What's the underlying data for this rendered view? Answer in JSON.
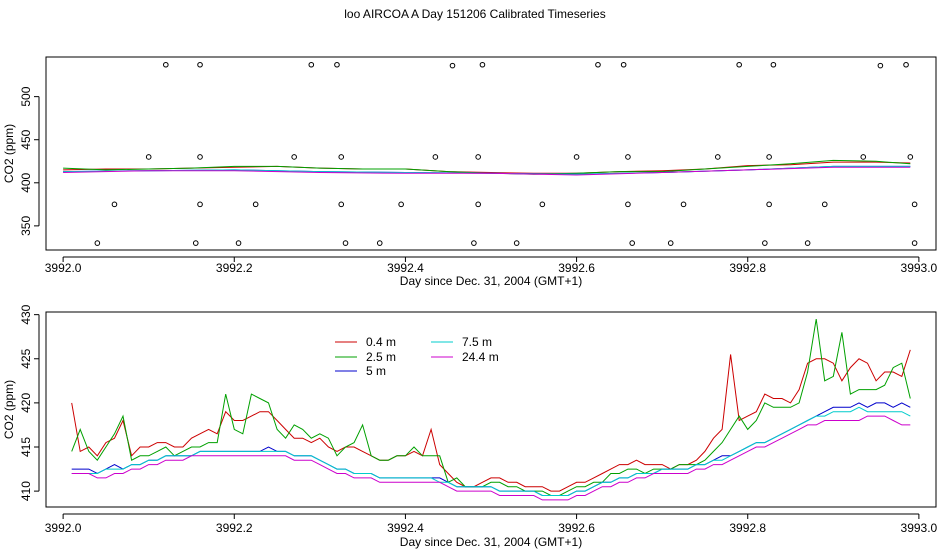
{
  "title": "loo AIRCOA A  Day 151206  Calibrated Timeseries",
  "chart_data": [
    {
      "type": "line",
      "xlabel": "Day since Dec. 31, 2004 (GMT+1)",
      "ylabel": "CO2 (ppm)",
      "xlim": [
        3991.98,
        3993.02
      ],
      "ylim": [
        322,
        546
      ],
      "xticks": [
        "3992.0",
        "3992.2",
        "3992.4",
        "3992.6",
        "3992.8",
        "3993.0"
      ],
      "yticks": [
        "350",
        "400",
        "450",
        "500"
      ],
      "series_colors": [
        "#cc0000",
        "#00a000",
        "#0000cc",
        "#00cccc",
        "#cc00cc"
      ],
      "series": [
        {
          "x": [
            3992.0,
            3992.05,
            3992.1,
            3992.15,
            3992.2,
            3992.25,
            3992.3,
            3992.35,
            3992.4,
            3992.45,
            3992.5,
            3992.55,
            3992.6,
            3992.65,
            3992.7,
            3992.75,
            3992.8,
            3992.85,
            3992.9,
            3992.95,
            3992.99
          ],
          "values": [
            415,
            416,
            416,
            417,
            418,
            419,
            417,
            416,
            416,
            413,
            412,
            411,
            411,
            413,
            414,
            416,
            420,
            421,
            424,
            424,
            423
          ]
        },
        {
          "x": [
            3992.0,
            3992.05,
            3992.1,
            3992.15,
            3992.2,
            3992.25,
            3992.3,
            3992.35,
            3992.4,
            3992.45,
            3992.5,
            3992.55,
            3992.6,
            3992.65,
            3992.7,
            3992.75,
            3992.8,
            3992.85,
            3992.9,
            3992.95,
            3992.99
          ],
          "values": [
            417,
            415,
            416,
            417,
            419,
            419,
            417,
            416,
            416,
            413,
            411,
            410,
            411,
            413,
            413,
            416,
            419,
            422,
            426,
            425,
            422
          ]
        },
        {
          "x": [
            3992.0,
            3992.1,
            3992.2,
            3992.3,
            3992.4,
            3992.5,
            3992.6,
            3992.7,
            3992.8,
            3992.9,
            3992.99
          ],
          "values": [
            413,
            414,
            415,
            413,
            412,
            411,
            410,
            412,
            415,
            419,
            419
          ]
        },
        {
          "x": [
            3992.0,
            3992.1,
            3992.2,
            3992.3,
            3992.4,
            3992.5,
            3992.6,
            3992.7,
            3992.8,
            3992.9,
            3992.99
          ],
          "values": [
            413,
            414,
            415,
            413,
            412,
            411,
            410,
            412,
            415,
            419,
            419
          ]
        },
        {
          "x": [
            3992.0,
            3992.1,
            3992.2,
            3992.3,
            3992.4,
            3992.5,
            3992.6,
            3992.7,
            3992.8,
            3992.9,
            3992.99
          ],
          "values": [
            412,
            414,
            414,
            412,
            411,
            411,
            409,
            412,
            415,
            418,
            418
          ]
        }
      ],
      "points": {
        "x": [
          3992.04,
          3992.06,
          3992.1,
          3992.12,
          3992.155,
          3992.16,
          3992.16,
          3992.16,
          3992.205,
          3992.225,
          3992.27,
          3992.29,
          3992.32,
          3992.325,
          3992.325,
          3992.33,
          3992.37,
          3992.395,
          3992.435,
          3992.455,
          3992.48,
          3992.485,
          3992.485,
          3992.49,
          3992.53,
          3992.56,
          3992.6,
          3992.625,
          3992.655,
          3992.66,
          3992.66,
          3992.665,
          3992.71,
          3992.725,
          3992.765,
          3992.79,
          3992.82,
          3992.825,
          3992.825,
          3992.83,
          3992.87,
          3992.89,
          3992.935,
          3992.955,
          3992.985,
          3992.99,
          3992.995,
          3992.995
        ],
        "y": [
          330,
          375,
          430,
          537,
          330,
          375,
          430,
          537,
          330,
          375,
          430,
          537,
          537,
          430,
          375,
          330,
          330,
          375,
          430,
          536,
          330,
          375,
          430,
          537,
          330,
          375,
          430,
          537,
          537,
          430,
          375,
          330,
          330,
          375,
          430,
          537,
          330,
          375,
          430,
          537,
          330,
          375,
          430,
          536,
          537,
          430,
          375,
          330
        ]
      }
    },
    {
      "type": "line",
      "xlabel": "Day since Dec. 31, 2004 (GMT+1)",
      "ylabel": "CO2 (ppm)",
      "xlim": [
        3991.98,
        3993.02
      ],
      "ylim": [
        408.2,
        430.3
      ],
      "xticks": [
        "3992.0",
        "3992.2",
        "3992.4",
        "3992.6",
        "3992.8",
        "3993.0"
      ],
      "yticks": [
        "410",
        "415",
        "420",
        "425",
        "430"
      ],
      "legend": "top-left",
      "x": [
        3992.01,
        3992.02,
        3992.03,
        3992.04,
        3992.05,
        3992.06,
        3992.07,
        3992.08,
        3992.09,
        3992.1,
        3992.11,
        3992.12,
        3992.13,
        3992.14,
        3992.15,
        3992.16,
        3992.17,
        3992.18,
        3992.19,
        3992.2,
        3992.21,
        3992.22,
        3992.23,
        3992.24,
        3992.25,
        3992.26,
        3992.27,
        3992.28,
        3992.29,
        3992.3,
        3992.31,
        3992.32,
        3992.33,
        3992.34,
        3992.35,
        3992.36,
        3992.37,
        3992.38,
        3992.39,
        3992.4,
        3992.41,
        3992.42,
        3992.43,
        3992.44,
        3992.45,
        3992.46,
        3992.47,
        3992.48,
        3992.49,
        3992.5,
        3992.51,
        3992.52,
        3992.53,
        3992.54,
        3992.55,
        3992.56,
        3992.57,
        3992.58,
        3992.59,
        3992.6,
        3992.61,
        3992.62,
        3992.63,
        3992.64,
        3992.65,
        3992.66,
        3992.67,
        3992.68,
        3992.69,
        3992.7,
        3992.71,
        3992.72,
        3992.73,
        3992.74,
        3992.75,
        3992.76,
        3992.77,
        3992.78,
        3992.79,
        3992.8,
        3992.81,
        3992.82,
        3992.83,
        3992.84,
        3992.85,
        3992.86,
        3992.87,
        3992.88,
        3992.89,
        3992.9,
        3992.91,
        3992.92,
        3992.93,
        3992.94,
        3992.95,
        3992.96,
        3992.97,
        3992.98,
        3992.99
      ],
      "series": [
        {
          "name": "0.4 m",
          "color": "#cc0000",
          "values": [
            420,
            414.5,
            415,
            414,
            415.5,
            416,
            418,
            414,
            415,
            415,
            415.5,
            415.5,
            415,
            415,
            416,
            416.5,
            417,
            416.5,
            419,
            418,
            418,
            418.5,
            419,
            419,
            418,
            417,
            416,
            416,
            415.5,
            416,
            415,
            414.5,
            415,
            415,
            414.5,
            414,
            413.5,
            413.5,
            414,
            414,
            414.5,
            414,
            417,
            413,
            412,
            411,
            410.5,
            410.5,
            411,
            411.5,
            411.5,
            411,
            411,
            410.5,
            410.5,
            410.5,
            410,
            410,
            410.5,
            411,
            411,
            411.5,
            412,
            412.5,
            413,
            413,
            413.5,
            413,
            413,
            413,
            412.5,
            413,
            413,
            413.5,
            414.5,
            416,
            417,
            425.5,
            418,
            418.5,
            419,
            421,
            420.5,
            420.5,
            420,
            421.5,
            424.5,
            425,
            425,
            424.5,
            422.5,
            424,
            425,
            424.5,
            422.5,
            423.5,
            423.5,
            423,
            426
          ]
        },
        {
          "name": "2.5 m",
          "color": "#00a000",
          "values": [
            414.5,
            417,
            414.5,
            413.5,
            415,
            416.5,
            418.5,
            413.5,
            414,
            414,
            414.5,
            415,
            414,
            414.5,
            415,
            415,
            415.5,
            415.5,
            421,
            417,
            416.5,
            421,
            420.5,
            420,
            417,
            416,
            417.5,
            417,
            416,
            416.5,
            416,
            414,
            415,
            415.5,
            417.5,
            414,
            413.5,
            413.5,
            414,
            414,
            415,
            414,
            414,
            414,
            411,
            411.5,
            410.5,
            410.5,
            410.5,
            411,
            411,
            410.5,
            410.5,
            410,
            410,
            410,
            409.5,
            409.5,
            410,
            410.5,
            410.5,
            411,
            411,
            412,
            412,
            412.5,
            412.5,
            412,
            412.5,
            412.5,
            412.5,
            413,
            413,
            413,
            413.5,
            414.5,
            415.5,
            417,
            418.5,
            417,
            418,
            420,
            419.5,
            419.5,
            419.5,
            420,
            423.5,
            429.5,
            422.5,
            423,
            428,
            421,
            421.5,
            421.5,
            421.5,
            422,
            424,
            424.5,
            420.5
          ]
        },
        {
          "name": "5 m",
          "color": "#0000cc",
          "values": [
            412.5,
            412.5,
            412.5,
            412,
            412.5,
            413,
            412.5,
            413,
            413,
            413.5,
            413.5,
            414,
            414,
            414,
            414,
            414.5,
            414.5,
            414.5,
            414.5,
            414.5,
            414.5,
            414.5,
            414.5,
            415,
            414.5,
            414.5,
            414,
            414,
            414,
            413.5,
            413,
            412.5,
            412.5,
            412,
            412,
            412,
            411.5,
            411.5,
            411.5,
            411.5,
            411.5,
            411.5,
            411.5,
            411.5,
            411,
            410.5,
            410.5,
            410.5,
            410.5,
            410.5,
            410,
            410,
            410,
            410,
            410,
            409.5,
            409.5,
            409.5,
            409.5,
            410,
            410,
            410.5,
            411,
            411,
            411.5,
            411.5,
            412,
            412,
            412,
            412.5,
            412.5,
            412.5,
            412.5,
            413,
            413,
            413.5,
            414,
            414,
            414.5,
            415,
            415.5,
            415.5,
            416,
            416.5,
            417,
            417.5,
            418,
            418.5,
            419,
            419.5,
            419.5,
            419.5,
            420,
            419.5,
            420,
            420,
            419.5,
            420,
            419.5
          ]
        },
        {
          "name": "7.5 m",
          "color": "#00cccc",
          "values": [
            412,
            412,
            412,
            412,
            412.5,
            412.5,
            412.5,
            413,
            413,
            413.5,
            413.5,
            414,
            414,
            414,
            414,
            414.5,
            414.5,
            414.5,
            414.5,
            414.5,
            414.5,
            414.5,
            414.5,
            414.5,
            414.5,
            414.5,
            414,
            414,
            414,
            413.5,
            413,
            412.5,
            412.5,
            412,
            412,
            412,
            411.5,
            411.5,
            411.5,
            411.5,
            411.5,
            411.5,
            411.5,
            411,
            411,
            410.5,
            410.5,
            410.5,
            410.5,
            410.5,
            410,
            410,
            410,
            410,
            410,
            409.5,
            409.5,
            409.5,
            409.5,
            410,
            410,
            410.5,
            411,
            411,
            411.5,
            411.5,
            412,
            412,
            412,
            412.5,
            412.5,
            412.5,
            412.5,
            413,
            413,
            413.5,
            413.5,
            414,
            414.5,
            415,
            415.5,
            415.5,
            416,
            416.5,
            417,
            417.5,
            418,
            418.5,
            418.5,
            419,
            419,
            419,
            419.5,
            419,
            419,
            419,
            419,
            419,
            418.5
          ]
        },
        {
          "name": "24.4 m",
          "color": "#cc00cc",
          "values": [
            412,
            412,
            412,
            411.5,
            411.5,
            412,
            412,
            412.5,
            412.5,
            413,
            413,
            413.5,
            413.5,
            413.5,
            414,
            414,
            414,
            414,
            414,
            414,
            414,
            414,
            414,
            414,
            414,
            414,
            413.5,
            413.5,
            413.5,
            413,
            412.5,
            412,
            412,
            411.5,
            411.5,
            411.5,
            411,
            411,
            411,
            411,
            411,
            411,
            411,
            411,
            410.5,
            410,
            410,
            410,
            410,
            410,
            409.5,
            409.5,
            409.5,
            409.5,
            409.5,
            409,
            409,
            409,
            409,
            409.5,
            409.5,
            410,
            410.5,
            410.5,
            411,
            411,
            411.5,
            411.5,
            412,
            412,
            412,
            412,
            412,
            412.5,
            412.5,
            413,
            413,
            413.5,
            414,
            414.5,
            415,
            415,
            415.5,
            416,
            416.5,
            417,
            417.5,
            417.5,
            418,
            418,
            418,
            418,
            418,
            418.5,
            418.5,
            418.5,
            418,
            417.5,
            417.5
          ]
        }
      ]
    }
  ]
}
